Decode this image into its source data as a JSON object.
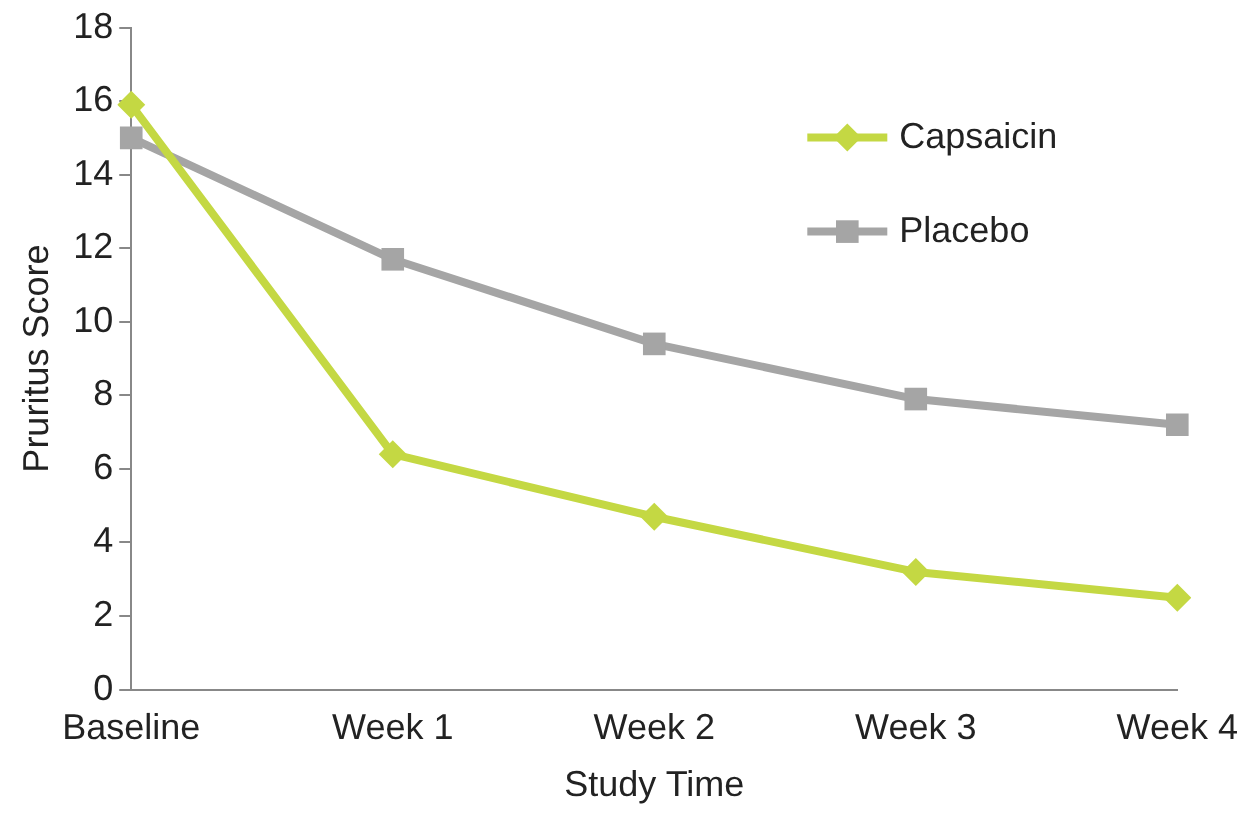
{
  "chart_data": {
    "type": "line",
    "xlabel": "Study Time",
    "ylabel": "Pruritus Score",
    "categories": [
      "Baseline",
      "Week 1",
      "Week 2",
      "Week 3",
      "Week 4"
    ],
    "series": [
      {
        "name": "Capsaicin",
        "color": "#c4d843",
        "marker": "diamond",
        "values": [
          15.9,
          6.4,
          4.7,
          3.2,
          2.5
        ]
      },
      {
        "name": "Placebo",
        "color": "#a5a5a5",
        "marker": "square",
        "values": [
          15,
          11.7,
          9.4,
          7.9,
          7.2
        ]
      }
    ],
    "ylim": [
      0,
      18
    ],
    "yticks": [
      0,
      2,
      4,
      6,
      8,
      10,
      12,
      14,
      16,
      18
    ],
    "grid": false,
    "legend": "top right",
    "line_style": "solid"
  }
}
